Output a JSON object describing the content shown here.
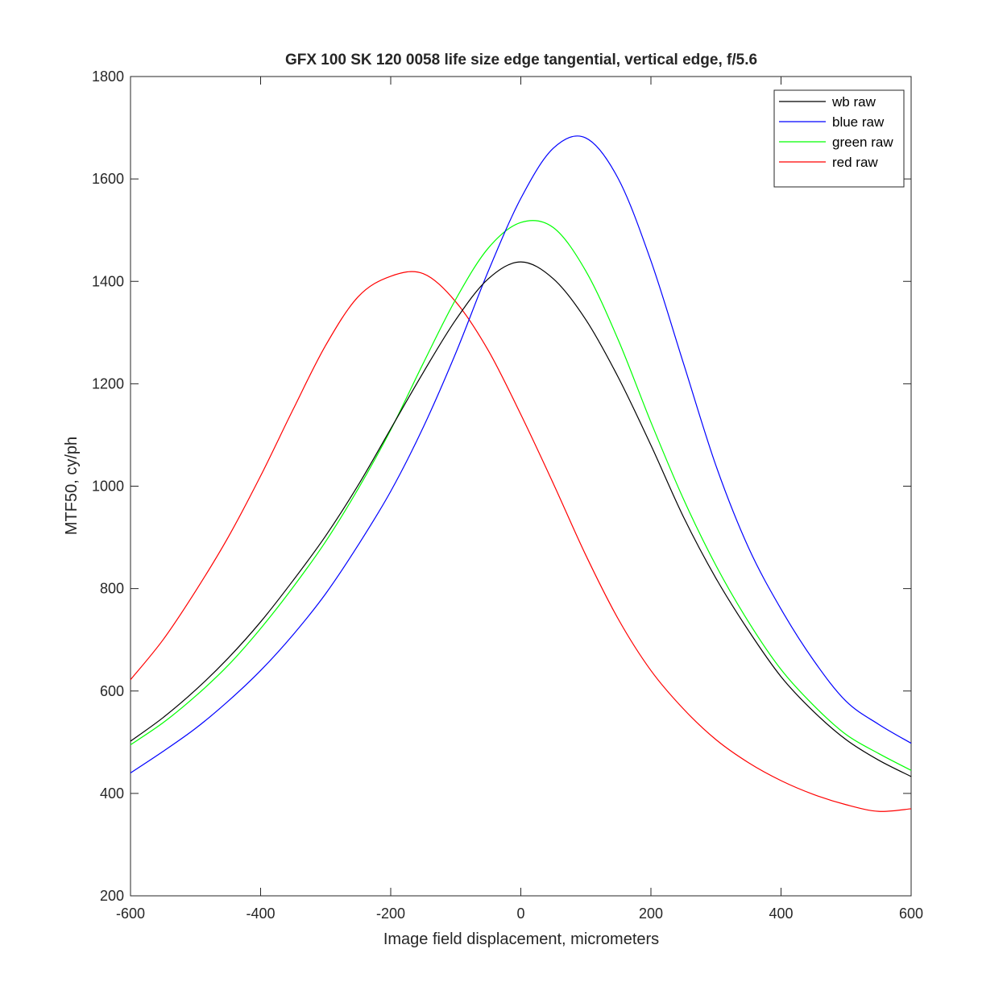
{
  "chart_data": {
    "type": "line",
    "title": "GFX 100 SK 120 0058 life size edge tangential, vertical edge, f/5.6",
    "xlabel": "Image field displacement, micrometers",
    "ylabel": "MTF50, cy/ph",
    "xlim": [
      -600,
      600
    ],
    "ylim": [
      200,
      1800
    ],
    "xticks": [
      -600,
      -400,
      -200,
      0,
      200,
      400,
      600
    ],
    "yticks": [
      200,
      400,
      600,
      800,
      1000,
      1200,
      1400,
      1600,
      1800
    ],
    "grid": false,
    "legend_position": "top-right",
    "x": [
      -600,
      -550,
      -500,
      -450,
      -400,
      -350,
      -300,
      -250,
      -200,
      -150,
      -100,
      -50,
      0,
      50,
      100,
      150,
      200,
      250,
      300,
      350,
      400,
      450,
      500,
      550,
      600
    ],
    "series": [
      {
        "name": "wb raw",
        "color": "#000000",
        "values": [
          502,
          548,
          602,
          664,
          735,
          816,
          903,
          1002,
          1112,
          1222,
          1325,
          1405,
          1438,
          1405,
          1325,
          1212,
          1080,
          940,
          820,
          718,
          628,
          560,
          505,
          465,
          433
        ]
      },
      {
        "name": "blue raw",
        "color": "#0000ff",
        "values": [
          440,
          482,
          527,
          580,
          640,
          710,
          790,
          885,
          990,
          1115,
          1260,
          1420,
          1562,
          1660,
          1680,
          1600,
          1440,
          1240,
          1040,
          880,
          760,
          660,
          580,
          535,
          498
        ]
      },
      {
        "name": "green raw",
        "color": "#00ff00",
        "values": [
          495,
          538,
          590,
          650,
          722,
          803,
          892,
          995,
          1110,
          1240,
          1365,
          1465,
          1515,
          1505,
          1420,
          1285,
          1125,
          975,
          845,
          735,
          642,
          572,
          515,
          478,
          445
        ]
      },
      {
        "name": "red raw",
        "color": "#ff0000",
        "values": [
          622,
          700,
          795,
          900,
          1020,
          1150,
          1275,
          1370,
          1410,
          1415,
          1360,
          1265,
          1140,
          1005,
          865,
          740,
          640,
          565,
          505,
          460,
          425,
          398,
          378,
          365,
          370
        ]
      }
    ]
  }
}
